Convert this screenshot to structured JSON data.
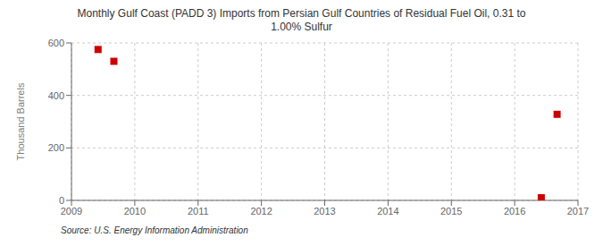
{
  "chart_data": {
    "type": "scatter",
    "title": "Monthly Gulf Coast (PADD 3) Imports from Persian Gulf Countries of Residual Fuel Oil, 0.31 to\n1.00% Sulfur",
    "ylabel": "Thousand Barrels",
    "annotation": "Source: U.S. Energy Information Administration",
    "x": [
      2009.42,
      2009.67,
      2016.42,
      2016.67
    ],
    "values": [
      575,
      530,
      10,
      328
    ],
    "color": "#cc0000",
    "marker": "square",
    "xlim": [
      2009,
      2017
    ],
    "ylim": [
      0,
      600
    ],
    "xticks": [
      2009,
      2010,
      2011,
      2012,
      2013,
      2014,
      2015,
      2016,
      2017
    ],
    "yticks": [
      0,
      200,
      400,
      600
    ],
    "grid": true
  }
}
